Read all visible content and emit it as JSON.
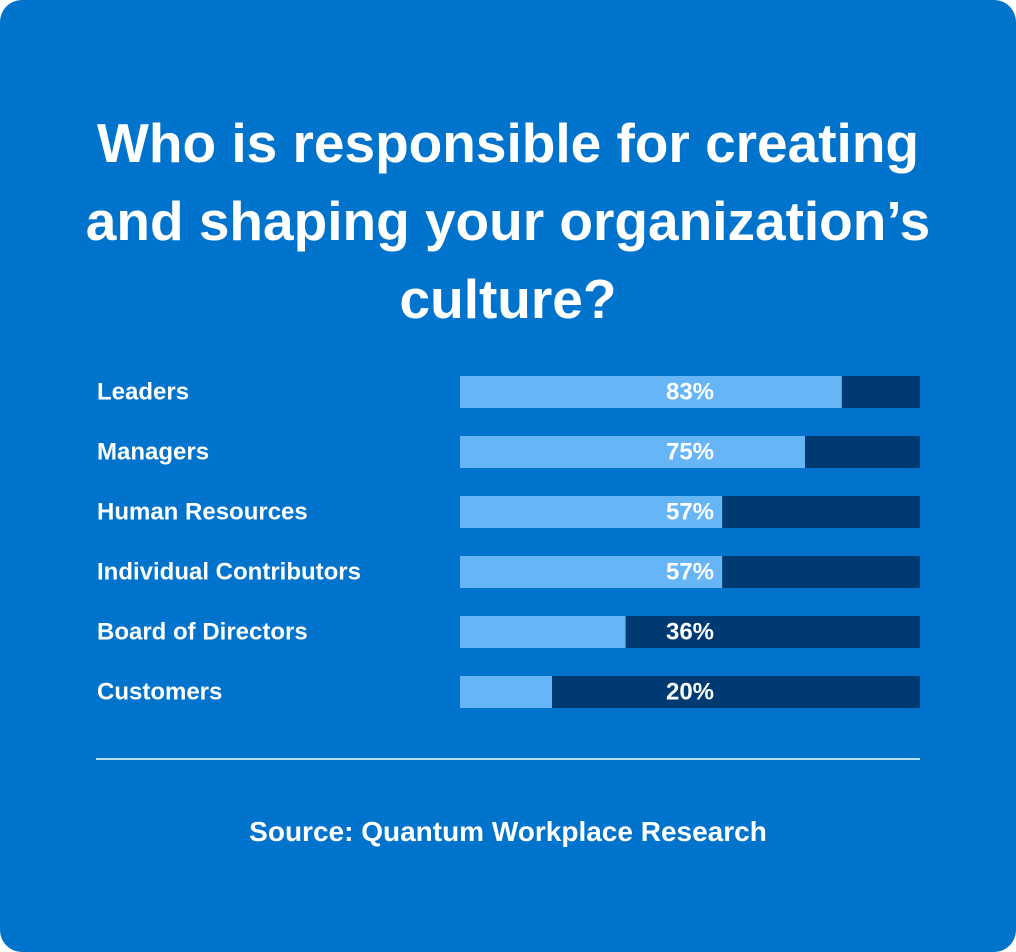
{
  "colors": {
    "background": "#0074cc",
    "bar_fill": "#65b5f7",
    "bar_track": "#003a73",
    "text": "#ffffff",
    "divider": "#b9dcf7"
  },
  "chart_data": {
    "type": "bar",
    "orientation": "horizontal",
    "title": "Who is responsible for creating and shaping your organization’s culture?",
    "categories": [
      "Leaders",
      "Managers",
      "Human Resources",
      "Individual Contributors",
      "Board of Directors",
      "Customers"
    ],
    "values": [
      83,
      75,
      57,
      57,
      36,
      20
    ],
    "value_labels": [
      "83%",
      "75%",
      "57%",
      "57%",
      "36%",
      "20%"
    ],
    "xlim": [
      0,
      100
    ],
    "grid": false,
    "legend": "none"
  },
  "source": "Source: Quantum Workplace Research"
}
